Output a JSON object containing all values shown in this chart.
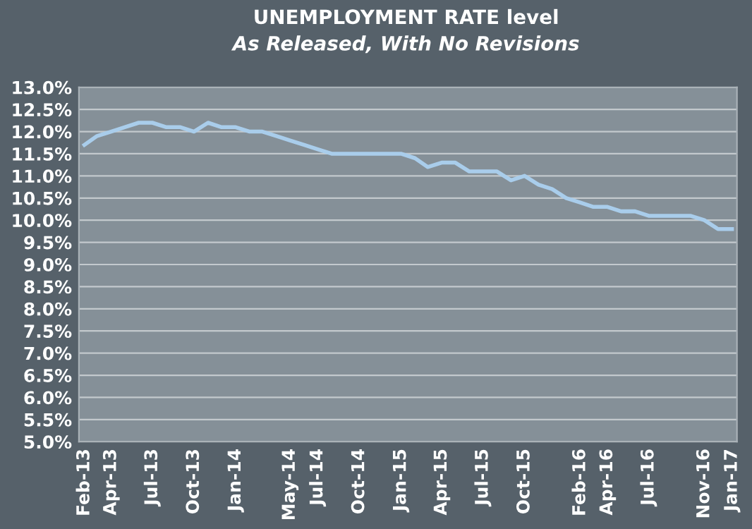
{
  "chart_data": {
    "type": "line",
    "title": "UNEMPLOYMENT RATE level",
    "subtitle": "As Released, With No Revisions",
    "x": [
      "2013-02",
      "2013-03",
      "2013-04",
      "2013-05",
      "2013-06",
      "2013-07",
      "2013-08",
      "2013-09",
      "2013-10",
      "2013-11",
      "2013-12",
      "2014-01",
      "2014-02",
      "2014-03",
      "2014-04",
      "2014-05",
      "2014-06",
      "2014-07",
      "2014-08",
      "2014-09",
      "2014-10",
      "2014-11",
      "2014-12",
      "2015-01",
      "2015-02",
      "2015-03",
      "2015-04",
      "2015-05",
      "2015-06",
      "2015-07",
      "2015-08",
      "2015-09",
      "2015-10",
      "2015-11",
      "2015-12",
      "2016-01",
      "2016-02",
      "2016-03",
      "2016-04",
      "2016-05",
      "2016-06",
      "2016-07",
      "2016-08",
      "2016-09",
      "2016-10",
      "2016-11",
      "2016-12",
      "2017-01"
    ],
    "series": [
      {
        "color": "#a9cdeb",
        "values": [
          11.7,
          11.9,
          12.0,
          12.1,
          12.2,
          12.2,
          12.1,
          12.1,
          12.0,
          12.2,
          12.1,
          12.1,
          12.0,
          12.0,
          11.9,
          11.8,
          11.7,
          11.6,
          11.5,
          11.5,
          11.5,
          11.5,
          11.5,
          11.5,
          11.4,
          11.2,
          11.3,
          11.3,
          11.1,
          11.1,
          11.1,
          10.9,
          11.0,
          10.8,
          10.7,
          10.5,
          10.4,
          10.3,
          10.3,
          10.2,
          10.2,
          10.1,
          10.1,
          10.1,
          10.1,
          10.0,
          9.8,
          9.8
        ]
      }
    ],
    "xlim": [
      "2013-01-20",
      "2017-01-12"
    ],
    "xticks": [
      {
        "value": "2013-02",
        "label": "Feb-13"
      },
      {
        "value": "2013-04",
        "label": "Apr-13"
      },
      {
        "value": "2013-07",
        "label": "Jul-13"
      },
      {
        "value": "2013-10",
        "label": "Oct-13"
      },
      {
        "value": "2014-01",
        "label": "Jan-14"
      },
      {
        "value": "2014-05",
        "label": "May-14"
      },
      {
        "value": "2014-07",
        "label": "Jul-14"
      },
      {
        "value": "2014-10",
        "label": "Oct-14"
      },
      {
        "value": "2015-01",
        "label": "Jan-15"
      },
      {
        "value": "2015-04",
        "label": "Apr-15"
      },
      {
        "value": "2015-07",
        "label": "Jul-15"
      },
      {
        "value": "2015-10",
        "label": "Oct-15"
      },
      {
        "value": "2016-02",
        "label": "Feb-16"
      },
      {
        "value": "2016-04",
        "label": "Apr-16"
      },
      {
        "value": "2016-07",
        "label": "Jul-16"
      },
      {
        "value": "2016-11",
        "label": "Nov-16"
      },
      {
        "value": "2017-01",
        "label": "Jan-17"
      }
    ],
    "ylim": [
      5.0,
      13.0
    ],
    "yticks": [
      {
        "value": 5.0,
        "label": "5.0%"
      },
      {
        "value": 5.5,
        "label": "5.5%"
      },
      {
        "value": 6.0,
        "label": "6.0%"
      },
      {
        "value": 6.5,
        "label": "6.5%"
      },
      {
        "value": 7.0,
        "label": "7.0%"
      },
      {
        "value": 7.5,
        "label": "7.5%"
      },
      {
        "value": 8.0,
        "label": "8.0%"
      },
      {
        "value": 8.5,
        "label": "8.5%"
      },
      {
        "value": 9.0,
        "label": "9.0%"
      },
      {
        "value": 9.5,
        "label": "9.5%"
      },
      {
        "value": 10.0,
        "label": "10.0%"
      },
      {
        "value": 10.5,
        "label": "10.5%"
      },
      {
        "value": 11.0,
        "label": "11.0%"
      },
      {
        "value": 11.5,
        "label": "11.5%"
      },
      {
        "value": 12.0,
        "label": "12.0%"
      },
      {
        "value": 12.5,
        "label": "12.5%"
      },
      {
        "value": 13.0,
        "label": "13.0%"
      }
    ],
    "grid": "y",
    "legend": false,
    "marker": "none",
    "line_style": "solid"
  }
}
